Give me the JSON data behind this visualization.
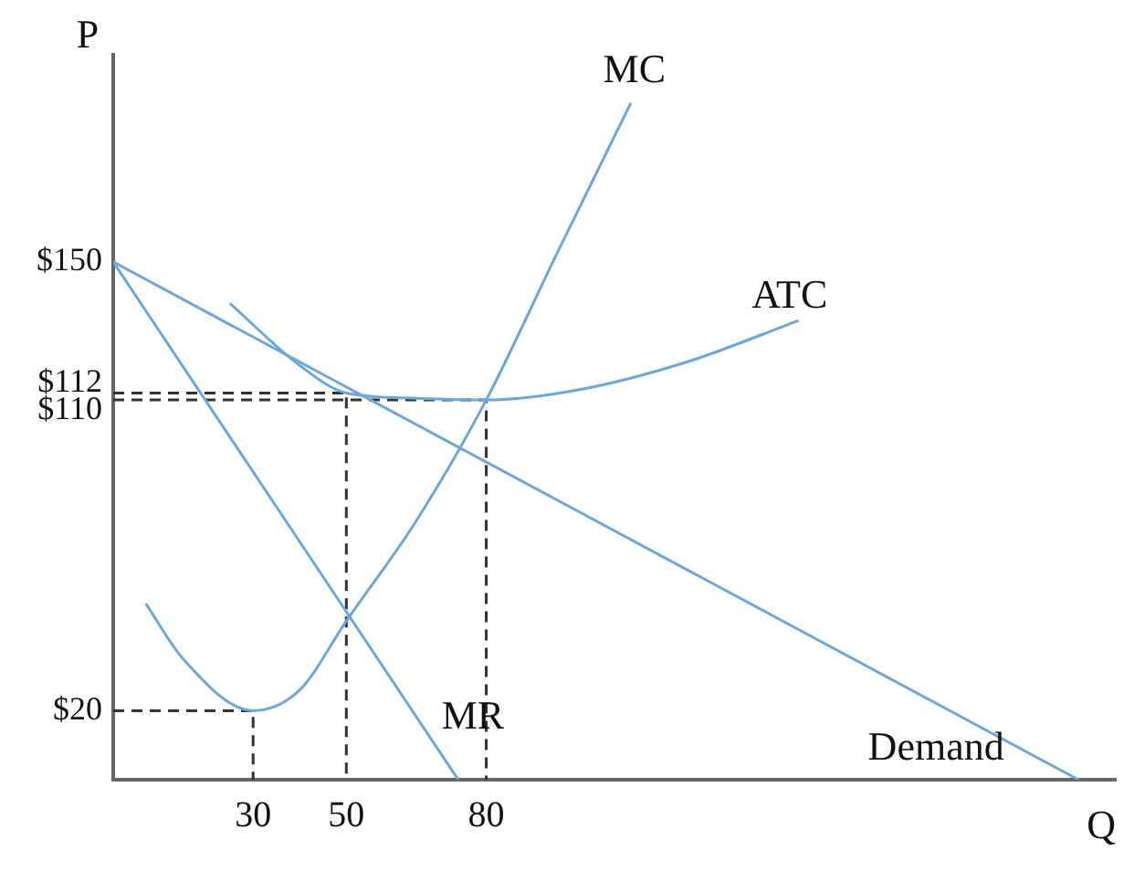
{
  "chart_data": {
    "type": "line",
    "xlabel": "Q",
    "ylabel": "P",
    "xlim": [
      0,
      215
    ],
    "ylim": [
      0,
      210
    ],
    "xticks": [
      30,
      50,
      80
    ],
    "yticks": [
      {
        "value": 20,
        "label": "$20"
      },
      {
        "value": 110,
        "label": "$110"
      },
      {
        "value": 112,
        "label": "$112"
      },
      {
        "value": 150,
        "label": "$150"
      }
    ],
    "grid": false,
    "legend": false,
    "marker": "none",
    "series": [
      {
        "name": "Demand",
        "color": "#6fa6da",
        "x": [
          0,
          207
        ],
        "values": [
          150,
          0
        ]
      },
      {
        "name": "MR",
        "color": "#6fa6da",
        "x": [
          0,
          74
        ],
        "values": [
          150,
          0
        ]
      },
      {
        "name": "MC",
        "color": "#6fa6da",
        "x": [
          7,
          15,
          30,
          40,
          50,
          65,
          80,
          95,
          111
        ],
        "values": [
          51,
          35,
          20,
          26,
          46,
          75,
          110,
          152,
          196
        ]
      },
      {
        "name": "ATC",
        "color": "#6fa6da",
        "x": [
          25,
          40,
          50,
          65,
          80,
          100,
          123,
          147
        ],
        "values": [
          138,
          120,
          112,
          110.5,
          110,
          113,
          121,
          133
        ]
      },
      {
        "color": "#333333",
        "line_style": "dashed",
        "x": [
          0,
          30,
          30
        ],
        "values": [
          20,
          20,
          0
        ]
      },
      {
        "color": "#333333",
        "line_style": "dashed",
        "x": [
          0,
          50,
          50
        ],
        "values": [
          112,
          112,
          0
        ]
      },
      {
        "color": "#333333",
        "line_style": "dashed",
        "x": [
          0,
          80,
          80
        ],
        "values": [
          110,
          110,
          0
        ]
      }
    ]
  }
}
